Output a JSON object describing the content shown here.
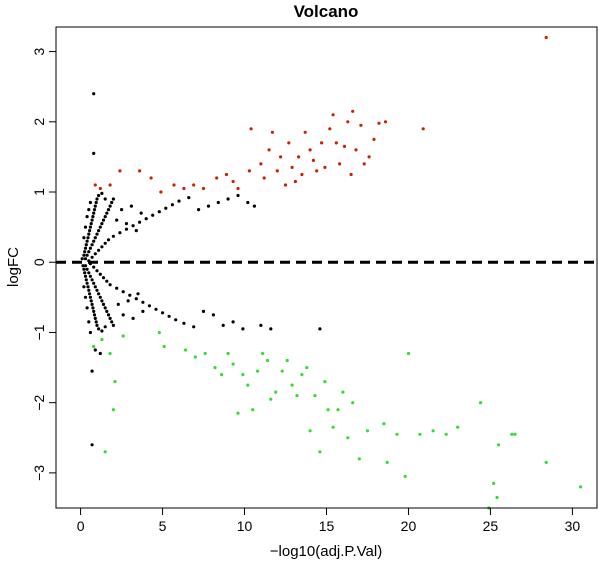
{
  "chart_data": {
    "type": "scatter",
    "title": "Volcano",
    "xlabel": "−log10(adj.P.Val)",
    "ylabel": "logFC",
    "xlim": [
      -1.5,
      31.5
    ],
    "ylim": [
      -3.5,
      3.35
    ],
    "xticks": [
      {
        "value": 0,
        "label": "0"
      },
      {
        "value": 5,
        "label": "5"
      },
      {
        "value": 10,
        "label": "10"
      },
      {
        "value": 15,
        "label": "15"
      },
      {
        "value": 20,
        "label": "20"
      },
      {
        "value": 25,
        "label": "25"
      },
      {
        "value": 30,
        "label": "30"
      }
    ],
    "yticks": [
      {
        "value": -3,
        "label": "−3"
      },
      {
        "value": -2,
        "label": "−2"
      },
      {
        "value": -1,
        "label": "−1"
      },
      {
        "value": 0,
        "label": "0"
      },
      {
        "value": 1,
        "label": "1"
      },
      {
        "value": 2,
        "label": "2"
      },
      {
        "value": 3,
        "label": "3"
      }
    ],
    "hline": {
      "y": 0,
      "style": "dashed",
      "color": "#000000"
    },
    "grid": false,
    "colors": {
      "up": "#cc2200",
      "down": "#33dd33",
      "ns": "#000000"
    },
    "series": [
      {
        "group": "up",
        "points": [
          [
            28.4,
            3.2
          ],
          [
            0.9,
            1.1
          ],
          [
            1.2,
            1.05
          ],
          [
            1.8,
            1.1
          ],
          [
            2.4,
            1.3
          ],
          [
            3.6,
            1.3
          ],
          [
            4.3,
            1.2
          ],
          [
            4.9,
            1.0
          ],
          [
            5.7,
            1.1
          ],
          [
            6.3,
            1.05
          ],
          [
            6.9,
            1.1
          ],
          [
            7.5,
            1.05
          ],
          [
            8.3,
            1.2
          ],
          [
            8.9,
            1.25
          ],
          [
            9.3,
            1.15
          ],
          [
            9.6,
            1.05
          ],
          [
            10.3,
            1.3
          ],
          [
            10.4,
            1.9
          ],
          [
            11.0,
            1.4
          ],
          [
            11.2,
            1.2
          ],
          [
            11.5,
            1.6
          ],
          [
            11.7,
            1.85
          ],
          [
            12.0,
            1.3
          ],
          [
            12.2,
            1.5
          ],
          [
            12.5,
            1.1
          ],
          [
            12.7,
            1.7
          ],
          [
            12.9,
            1.35
          ],
          [
            13.1,
            1.15
          ],
          [
            13.3,
            1.5
          ],
          [
            13.5,
            1.25
          ],
          [
            13.7,
            1.85
          ],
          [
            14.0,
            1.6
          ],
          [
            14.2,
            1.45
          ],
          [
            14.4,
            1.3
          ],
          [
            14.7,
            1.7
          ],
          [
            14.9,
            1.35
          ],
          [
            15.2,
            1.9
          ],
          [
            15.4,
            2.1
          ],
          [
            15.6,
            1.7
          ],
          [
            15.8,
            1.4
          ],
          [
            16.1,
            1.65
          ],
          [
            16.3,
            2.0
          ],
          [
            16.5,
            1.25
          ],
          [
            16.6,
            2.15
          ],
          [
            16.8,
            1.6
          ],
          [
            17.1,
            1.95
          ],
          [
            17.3,
            1.4
          ],
          [
            17.6,
            1.5
          ],
          [
            17.9,
            1.75
          ],
          [
            18.2,
            1.98
          ],
          [
            18.6,
            2.0
          ],
          [
            20.9,
            1.9
          ]
        ]
      },
      {
        "group": "down",
        "points": [
          [
            0.8,
            -1.2
          ],
          [
            1.3,
            -1.1
          ],
          [
            1.5,
            -2.7
          ],
          [
            1.8,
            -1.3
          ],
          [
            2.0,
            -2.1
          ],
          [
            2.1,
            -1.7
          ],
          [
            2.6,
            -1.05
          ],
          [
            4.8,
            -1.0
          ],
          [
            5.1,
            -1.2
          ],
          [
            6.4,
            -1.25
          ],
          [
            7.0,
            -1.35
          ],
          [
            7.6,
            -1.3
          ],
          [
            8.2,
            -1.5
          ],
          [
            8.6,
            -1.6
          ],
          [
            9.0,
            -1.3
          ],
          [
            9.3,
            -1.45
          ],
          [
            9.6,
            -2.15
          ],
          [
            9.9,
            -1.6
          ],
          [
            10.2,
            -1.75
          ],
          [
            10.5,
            -2.1
          ],
          [
            10.8,
            -1.55
          ],
          [
            11.1,
            -1.3
          ],
          [
            11.4,
            -1.4
          ],
          [
            11.6,
            -1.95
          ],
          [
            11.9,
            -1.85
          ],
          [
            12.3,
            -1.55
          ],
          [
            12.6,
            -1.4
          ],
          [
            12.9,
            -1.75
          ],
          [
            13.2,
            -1.9
          ],
          [
            13.5,
            -1.6
          ],
          [
            13.8,
            -1.5
          ],
          [
            14.0,
            -2.4
          ],
          [
            14.3,
            -1.9
          ],
          [
            14.6,
            -2.7
          ],
          [
            14.9,
            -1.7
          ],
          [
            15.1,
            -2.1
          ],
          [
            15.4,
            -2.35
          ],
          [
            15.7,
            -2.1
          ],
          [
            16.0,
            -1.85
          ],
          [
            16.3,
            -2.5
          ],
          [
            16.6,
            -2.0
          ],
          [
            17.0,
            -2.8
          ],
          [
            17.5,
            -2.4
          ],
          [
            18.5,
            -2.3
          ],
          [
            18.7,
            -2.85
          ],
          [
            19.3,
            -2.45
          ],
          [
            19.8,
            -3.05
          ],
          [
            20.0,
            -1.3
          ],
          [
            20.7,
            -2.45
          ],
          [
            21.5,
            -2.4
          ],
          [
            22.3,
            -2.45
          ],
          [
            23.0,
            -2.35
          ],
          [
            24.4,
            -2.0
          ],
          [
            24.9,
            -3.5
          ],
          [
            25.2,
            -3.15
          ],
          [
            25.5,
            -2.6
          ],
          [
            26.3,
            -2.45
          ],
          [
            26.5,
            -2.45
          ],
          [
            28.4,
            -2.85
          ],
          [
            30.5,
            -3.2
          ],
          [
            25.4,
            -3.35
          ]
        ]
      },
      {
        "group": "ns",
        "points": [
          [
            0.8,
            2.4
          ],
          [
            0.8,
            1.55
          ],
          [
            0.7,
            -2.6
          ],
          [
            0.7,
            -1.55
          ],
          [
            0.1,
            0.05
          ],
          [
            0.15,
            -0.05
          ],
          [
            0.2,
            0.1
          ],
          [
            0.2,
            -0.1
          ],
          [
            0.25,
            0.15
          ],
          [
            0.25,
            -0.15
          ],
          [
            0.3,
            0.2
          ],
          [
            0.3,
            -0.2
          ],
          [
            0.35,
            0.25
          ],
          [
            0.35,
            -0.25
          ],
          [
            0.4,
            0.3
          ],
          [
            0.4,
            -0.3
          ],
          [
            0.45,
            0.35
          ],
          [
            0.45,
            -0.35
          ],
          [
            0.5,
            0.4
          ],
          [
            0.5,
            -0.4
          ],
          [
            0.55,
            0.45
          ],
          [
            0.55,
            -0.45
          ],
          [
            0.6,
            0.5
          ],
          [
            0.6,
            -0.5
          ],
          [
            0.65,
            0.55
          ],
          [
            0.65,
            -0.55
          ],
          [
            0.7,
            0.6
          ],
          [
            0.7,
            -0.6
          ],
          [
            0.75,
            0.65
          ],
          [
            0.75,
            -0.65
          ],
          [
            0.8,
            0.7
          ],
          [
            0.8,
            -0.7
          ],
          [
            0.85,
            0.75
          ],
          [
            0.85,
            -0.75
          ],
          [
            0.9,
            0.8
          ],
          [
            0.9,
            -0.8
          ],
          [
            0.95,
            0.85
          ],
          [
            0.95,
            -0.85
          ],
          [
            1.0,
            0.9
          ],
          [
            1.0,
            -0.9
          ],
          [
            0.3,
            0.05
          ],
          [
            0.3,
            -0.05
          ],
          [
            0.4,
            0.1
          ],
          [
            0.4,
            -0.1
          ],
          [
            0.5,
            0.15
          ],
          [
            0.5,
            -0.15
          ],
          [
            0.6,
            0.2
          ],
          [
            0.6,
            -0.2
          ],
          [
            0.7,
            0.25
          ],
          [
            0.7,
            -0.25
          ],
          [
            0.8,
            0.3
          ],
          [
            0.8,
            -0.3
          ],
          [
            0.9,
            0.35
          ],
          [
            0.9,
            -0.35
          ],
          [
            1.0,
            0.4
          ],
          [
            1.0,
            -0.4
          ],
          [
            1.1,
            0.45
          ],
          [
            1.1,
            -0.45
          ],
          [
            1.2,
            0.5
          ],
          [
            1.2,
            -0.5
          ],
          [
            1.3,
            0.55
          ],
          [
            1.3,
            -0.55
          ],
          [
            1.4,
            0.6
          ],
          [
            1.4,
            -0.6
          ],
          [
            1.5,
            0.65
          ],
          [
            1.5,
            -0.65
          ],
          [
            1.6,
            0.7
          ],
          [
            1.6,
            -0.7
          ],
          [
            1.7,
            0.75
          ],
          [
            1.7,
            -0.75
          ],
          [
            1.8,
            0.8
          ],
          [
            1.8,
            -0.8
          ],
          [
            1.9,
            0.85
          ],
          [
            1.9,
            -0.85
          ],
          [
            2.0,
            0.9
          ],
          [
            2.0,
            -0.9
          ],
          [
            0.5,
            0.02
          ],
          [
            0.6,
            -0.02
          ],
          [
            0.7,
            0.07
          ],
          [
            0.8,
            -0.07
          ],
          [
            0.9,
            0.12
          ],
          [
            1.0,
            -0.12
          ],
          [
            1.1,
            0.17
          ],
          [
            1.2,
            -0.17
          ],
          [
            1.3,
            0.22
          ],
          [
            1.4,
            -0.22
          ],
          [
            1.5,
            0.27
          ],
          [
            1.6,
            -0.27
          ],
          [
            1.7,
            0.32
          ],
          [
            1.8,
            -0.32
          ],
          [
            2.0,
            0.37
          ],
          [
            2.2,
            -0.37
          ],
          [
            2.4,
            0.42
          ],
          [
            2.6,
            -0.42
          ],
          [
            2.8,
            0.47
          ],
          [
            3.0,
            -0.47
          ],
          [
            3.2,
            0.52
          ],
          [
            3.4,
            -0.52
          ],
          [
            3.6,
            0.57
          ],
          [
            3.8,
            -0.57
          ],
          [
            4.0,
            0.62
          ],
          [
            4.2,
            -0.62
          ],
          [
            4.4,
            0.67
          ],
          [
            4.6,
            -0.67
          ],
          [
            4.8,
            0.72
          ],
          [
            5.0,
            -0.72
          ],
          [
            5.2,
            0.77
          ],
          [
            5.4,
            -0.77
          ],
          [
            5.6,
            0.82
          ],
          [
            5.8,
            -0.82
          ],
          [
            6.0,
            0.87
          ],
          [
            6.3,
            -0.87
          ],
          [
            6.6,
            0.92
          ],
          [
            6.9,
            -0.92
          ],
          [
            7.2,
            0.75
          ],
          [
            7.5,
            -0.7
          ],
          [
            7.8,
            0.8
          ],
          [
            8.1,
            -0.75
          ],
          [
            8.4,
            0.85
          ],
          [
            8.7,
            -0.9
          ],
          [
            9.0,
            0.9
          ],
          [
            9.3,
            -0.85
          ],
          [
            9.6,
            0.95
          ],
          [
            9.9,
            -0.95
          ],
          [
            10.2,
            0.85
          ],
          [
            10.6,
            0.8
          ],
          [
            11.0,
            -0.9
          ],
          [
            11.6,
            -0.95
          ],
          [
            14.6,
            -0.95
          ],
          [
            2.2,
            0.6
          ],
          [
            2.5,
            0.75
          ],
          [
            2.8,
            0.55
          ],
          [
            3.1,
            0.8
          ],
          [
            3.4,
            0.45
          ],
          [
            3.7,
            0.7
          ],
          [
            2.3,
            -0.6
          ],
          [
            2.6,
            -0.75
          ],
          [
            2.9,
            -0.55
          ],
          [
            3.2,
            -0.8
          ],
          [
            3.5,
            -0.45
          ],
          [
            3.8,
            -0.7
          ],
          [
            1.1,
            0.95
          ],
          [
            1.3,
            0.98
          ],
          [
            1.5,
            0.9
          ],
          [
            1.1,
            -0.95
          ],
          [
            1.3,
            -0.98
          ],
          [
            1.5,
            -0.92
          ],
          [
            0.2,
            0.35
          ],
          [
            0.3,
            0.5
          ],
          [
            0.2,
            -0.35
          ],
          [
            0.3,
            -0.5
          ],
          [
            0.4,
            0.65
          ],
          [
            0.4,
            -0.65
          ],
          [
            0.5,
            0.75
          ],
          [
            0.5,
            -0.85
          ],
          [
            0.6,
            0.85
          ],
          [
            0.6,
            -1.0
          ],
          [
            0.9,
            -1.25
          ],
          [
            1.2,
            -1.3
          ]
        ]
      }
    ]
  }
}
